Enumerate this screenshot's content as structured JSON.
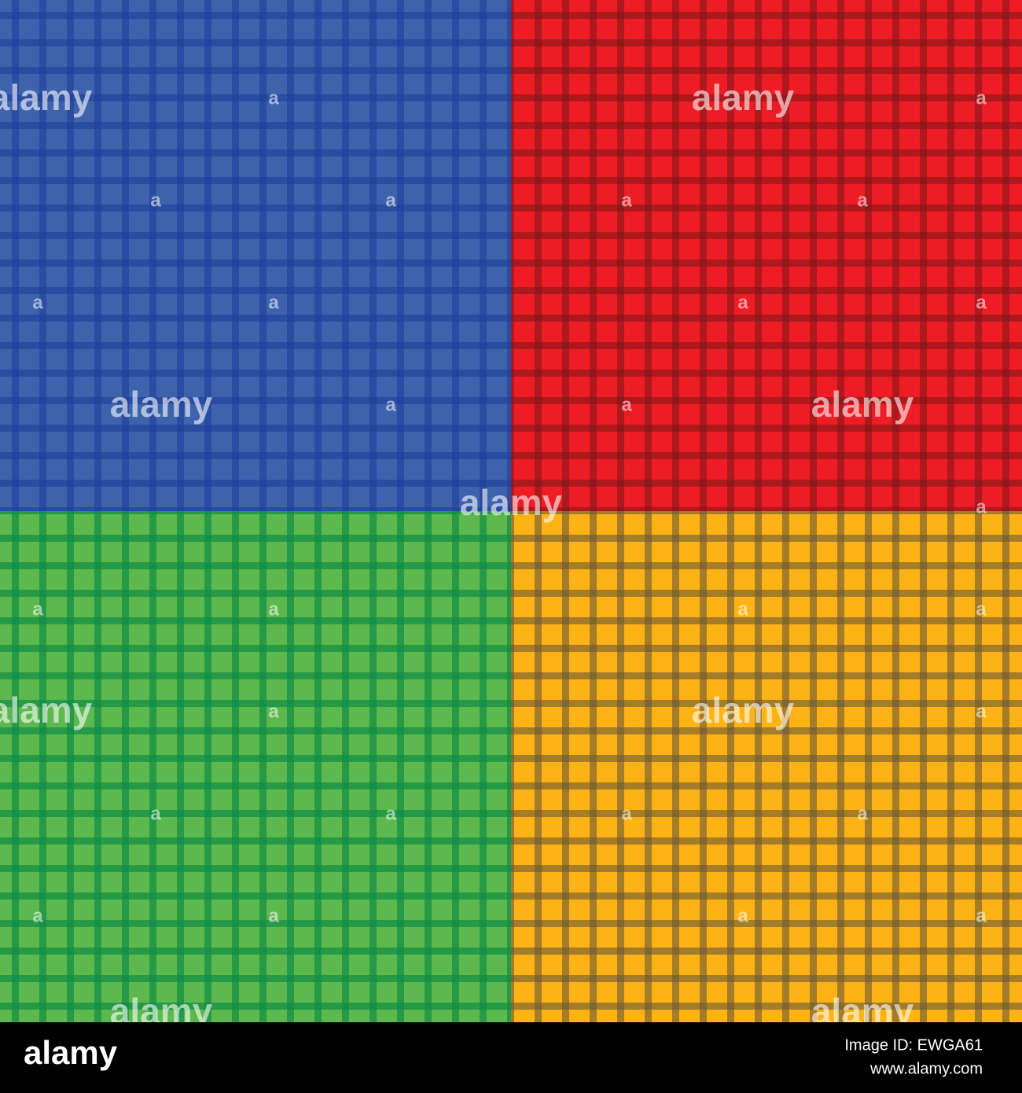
{
  "watermark": {
    "logo": "alamy",
    "mark": "a"
  },
  "footer": {
    "logo": "alamy",
    "image_id": "Image ID: EWGA61",
    "url": "www.alamy.com"
  }
}
